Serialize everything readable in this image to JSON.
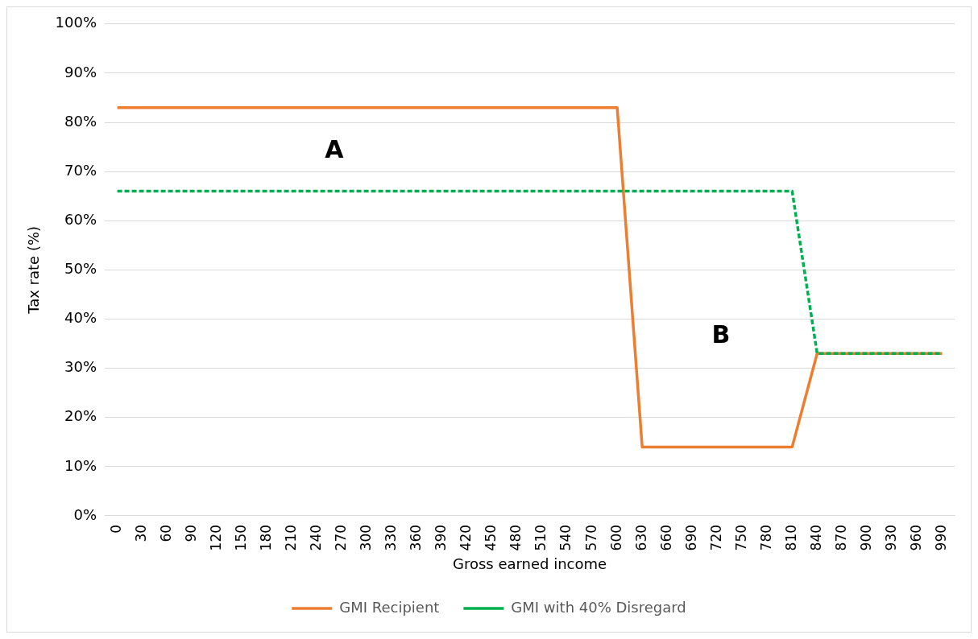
{
  "chart_data": {
    "type": "line",
    "xlabel": "Gross earned income",
    "ylabel": "Tax rate (%)",
    "categories": [
      "0",
      "30",
      "60",
      "90",
      "120",
      "150",
      "180",
      "210",
      "240",
      "270",
      "300",
      "330",
      "360",
      "390",
      "420",
      "450",
      "480",
      "510",
      "540",
      "570",
      "600",
      "630",
      "660",
      "690",
      "720",
      "750",
      "780",
      "810",
      "840",
      "870",
      "900",
      "930",
      "960",
      "990"
    ],
    "series": [
      {
        "name": "GMI Recipient",
        "color": "#ed7d31",
        "line_style": "solid",
        "values": [
          83,
          83,
          83,
          83,
          83,
          83,
          83,
          83,
          83,
          83,
          83,
          83,
          83,
          83,
          83,
          83,
          83,
          83,
          83,
          83,
          83,
          14,
          14,
          14,
          14,
          14,
          14,
          14,
          33,
          33,
          33,
          33,
          33,
          33
        ]
      },
      {
        "name": "GMI with 40% Disregard",
        "color": "#00b050",
        "line_style": "dashed",
        "values": [
          66,
          66,
          66,
          66,
          66,
          66,
          66,
          66,
          66,
          66,
          66,
          66,
          66,
          66,
          66,
          66,
          66,
          66,
          66,
          66,
          66,
          66,
          66,
          66,
          66,
          66,
          66,
          66,
          33,
          33,
          33,
          33,
          33,
          33
        ]
      }
    ],
    "ylim": [
      0,
      100
    ],
    "yticks": [
      {
        "value": 0,
        "label": "0%"
      },
      {
        "value": 10,
        "label": "10%"
      },
      {
        "value": 20,
        "label": "20%"
      },
      {
        "value": 30,
        "label": "30%"
      },
      {
        "value": 40,
        "label": "40%"
      },
      {
        "value": 50,
        "label": "50%"
      },
      {
        "value": 60,
        "label": "60%"
      },
      {
        "value": 70,
        "label": "70%"
      },
      {
        "value": 80,
        "label": "80%"
      },
      {
        "value": 90,
        "label": "90%"
      },
      {
        "value": 100,
        "label": "100%"
      }
    ],
    "annotations": [
      "A",
      "B"
    ],
    "grid": "y",
    "legend": "bottom",
    "marker": "none"
  }
}
